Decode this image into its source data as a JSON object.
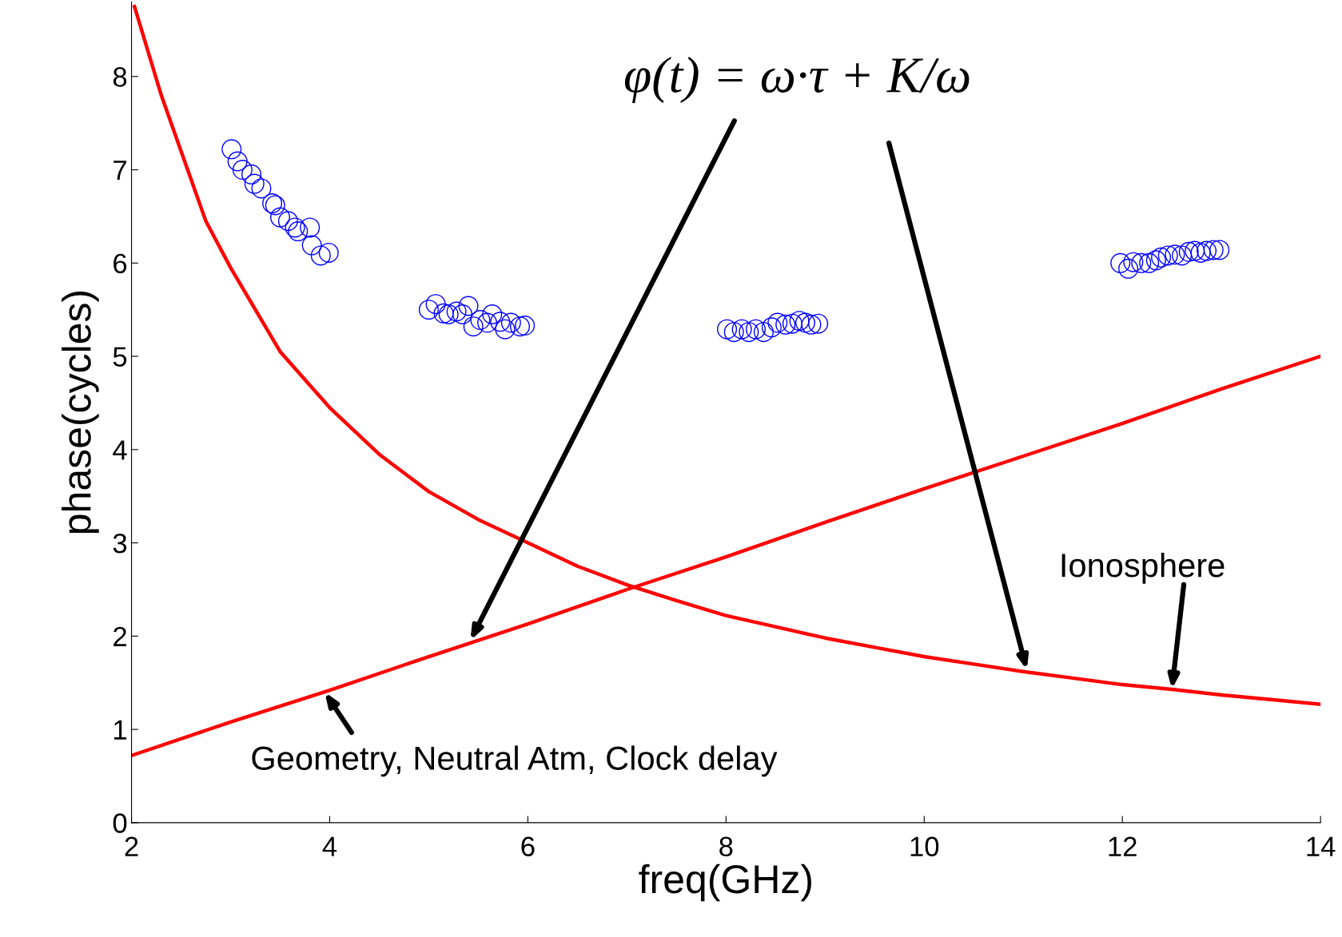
{
  "chart_data": {
    "type": "line",
    "xlabel": "freq(GHz)",
    "ylabel": "phase(cycles)",
    "xlim": [
      2,
      14
    ],
    "xticks": [
      2,
      4,
      6,
      8,
      10,
      12,
      14
    ],
    "ylim": [
      0,
      8.8
    ],
    "yticks": [
      0,
      1,
      2,
      3,
      4,
      5,
      6,
      7,
      8
    ],
    "grid": false,
    "legend": false,
    "series": [
      {
        "type": "line",
        "color": "#ff0000",
        "line_style": "solid",
        "marker": "none",
        "x": [
          2.03,
          2.3,
          2.5,
          2.75,
          3,
          3.5,
          4,
          4.5,
          5,
          5.5,
          6,
          6.5,
          7,
          7.5,
          8,
          8.5,
          9,
          9.5,
          10,
          10.5,
          11,
          11.5,
          12,
          12.5,
          13,
          13.5,
          14
        ],
        "values": [
          8.75,
          7.8,
          7.2,
          6.45,
          5.95,
          5.05,
          4.45,
          3.95,
          3.55,
          3.25,
          3.0,
          2.75,
          2.55,
          2.38,
          2.22,
          2.1,
          1.98,
          1.88,
          1.78,
          1.7,
          1.62,
          1.55,
          1.48,
          1.43,
          1.37,
          1.32,
          1.27
        ]
      },
      {
        "type": "line",
        "color": "#ff0000",
        "line_style": "solid",
        "marker": "none",
        "x": [
          2,
          3,
          4,
          5,
          6,
          7,
          8,
          9,
          10,
          11,
          12,
          13,
          14
        ],
        "values": [
          0.72,
          1.08,
          1.42,
          1.78,
          2.13,
          2.5,
          2.85,
          3.22,
          3.58,
          3.93,
          4.28,
          4.65,
          5.0
        ]
      },
      {
        "type": "scatter",
        "color": "#0000ff",
        "marker": "circle",
        "x": [
          3.01,
          3.07,
          3.12,
          3.21,
          3.24,
          3.31,
          3.42,
          3.45,
          3.5,
          3.58,
          3.65,
          3.68,
          3.8,
          3.82,
          3.91,
          3.99,
          5.0,
          5.07,
          5.15,
          5.2,
          5.28,
          5.34,
          5.4,
          5.45,
          5.52,
          5.59,
          5.64,
          5.72,
          5.77,
          5.83,
          5.92,
          5.97,
          8.01,
          8.08,
          8.16,
          8.23,
          8.3,
          8.38,
          8.46,
          8.52,
          8.6,
          8.67,
          8.74,
          8.8,
          8.86,
          8.93,
          11.98,
          12.06,
          12.11,
          12.19,
          12.27,
          12.34,
          12.39,
          12.46,
          12.53,
          12.6,
          12.67,
          12.73,
          12.79,
          12.85,
          12.92,
          12.98
        ],
        "values": [
          7.22,
          7.09,
          7.0,
          6.95,
          6.85,
          6.8,
          6.64,
          6.62,
          6.49,
          6.45,
          6.38,
          6.34,
          6.38,
          6.19,
          6.08,
          6.11,
          5.5,
          5.56,
          5.46,
          5.45,
          5.48,
          5.45,
          5.54,
          5.32,
          5.39,
          5.36,
          5.45,
          5.37,
          5.29,
          5.36,
          5.32,
          5.33,
          5.29,
          5.26,
          5.29,
          5.26,
          5.29,
          5.26,
          5.31,
          5.36,
          5.34,
          5.35,
          5.38,
          5.36,
          5.34,
          5.35,
          6.0,
          5.94,
          6.01,
          6.0,
          6.0,
          6.03,
          6.06,
          6.08,
          6.09,
          6.08,
          6.12,
          6.13,
          6.11,
          6.13,
          6.14,
          6.14
        ]
      }
    ],
    "annotations": [
      "φ(t) = ω·τ + K/ω",
      {
        "text": "Geometry, Neutral Atm, Clock delay",
        "x": 3.95,
        "y": 1.4
      },
      {
        "text": "Ionosphere",
        "x": 12.5,
        "y": 1.43
      }
    ]
  }
}
